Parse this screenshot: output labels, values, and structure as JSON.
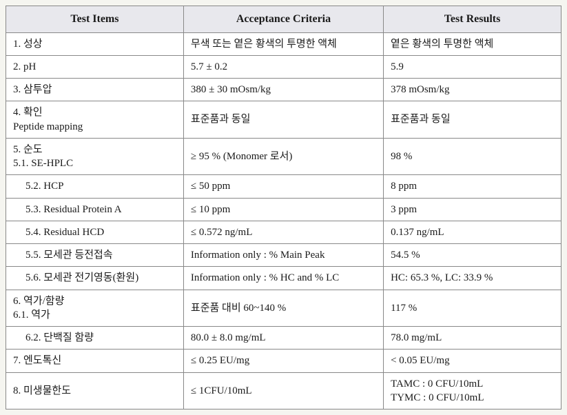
{
  "table": {
    "columns": [
      "Test Items",
      "Acceptance Criteria",
      "Test Results"
    ],
    "header_bg": "#e8e8ed",
    "border_color": "#888888",
    "background_color": "#ffffff",
    "font_family": "Times New Roman",
    "header_fontsize": 16,
    "cell_fontsize": 15,
    "rows": [
      {
        "item": "1. 성상",
        "criteria": "무색 또는 옅은 황색의 투명한 액체",
        "result": "옅은 황색의 투명한 액체",
        "indent": false
      },
      {
        "item": "2. pH",
        "criteria": "5.7 ± 0.2",
        "result": "5.9",
        "indent": false
      },
      {
        "item": "3. 삼투압",
        "criteria": "380 ± 30 mOsm/kg",
        "result": "378 mOsm/kg",
        "indent": false
      },
      {
        "item": "4. 확인\n   Peptide mapping",
        "criteria": "표준품과 동일",
        "result": "표준품과 동일",
        "indent": false
      },
      {
        "item": "5. 순도\n   5.1. SE-HPLC",
        "criteria": "≥ 95 % (Monomer 로서)",
        "result": "98 %",
        "indent": false
      },
      {
        "item": "5.2. HCP",
        "criteria": "≤ 50 ppm",
        "result": "8 ppm",
        "indent": true
      },
      {
        "item": "5.3. Residual Protein A",
        "criteria": "≤ 10 ppm",
        "result": "3 ppm",
        "indent": true
      },
      {
        "item": "5.4. Residual HCD",
        "criteria": "≤ 0.572 ng/mL",
        "result": "0.137 ng/mL",
        "indent": true
      },
      {
        "item": "5.5. 모세관 등전접속",
        "criteria": "Information only : % Main Peak",
        "result": "54.5 %",
        "indent": true
      },
      {
        "item": "5.6. 모세관 전기영동(환원)",
        "criteria": "Information only : % HC and % LC",
        "result": "HC: 65.3 %, LC: 33.9 %",
        "indent": true
      },
      {
        "item": "6. 역가/함량\n   6.1. 역가",
        "criteria": "표준품 대비 60~140 %",
        "result": "117 %",
        "indent": false
      },
      {
        "item": "6.2. 단백질 함량",
        "criteria": "80.0 ± 8.0 mg/mL",
        "result": "78.0 mg/mL",
        "indent": true
      },
      {
        "item": "7. 엔도톡신",
        "criteria": "≤ 0.25 EU/mg",
        "result": "< 0.05 EU/mg",
        "indent": false
      },
      {
        "item": "8. 미생물한도",
        "criteria": "≤ 1CFU/10mL",
        "result": "TAMC : 0 CFU/10mL\nTYMC : 0 CFU/10mL",
        "indent": false
      }
    ]
  }
}
